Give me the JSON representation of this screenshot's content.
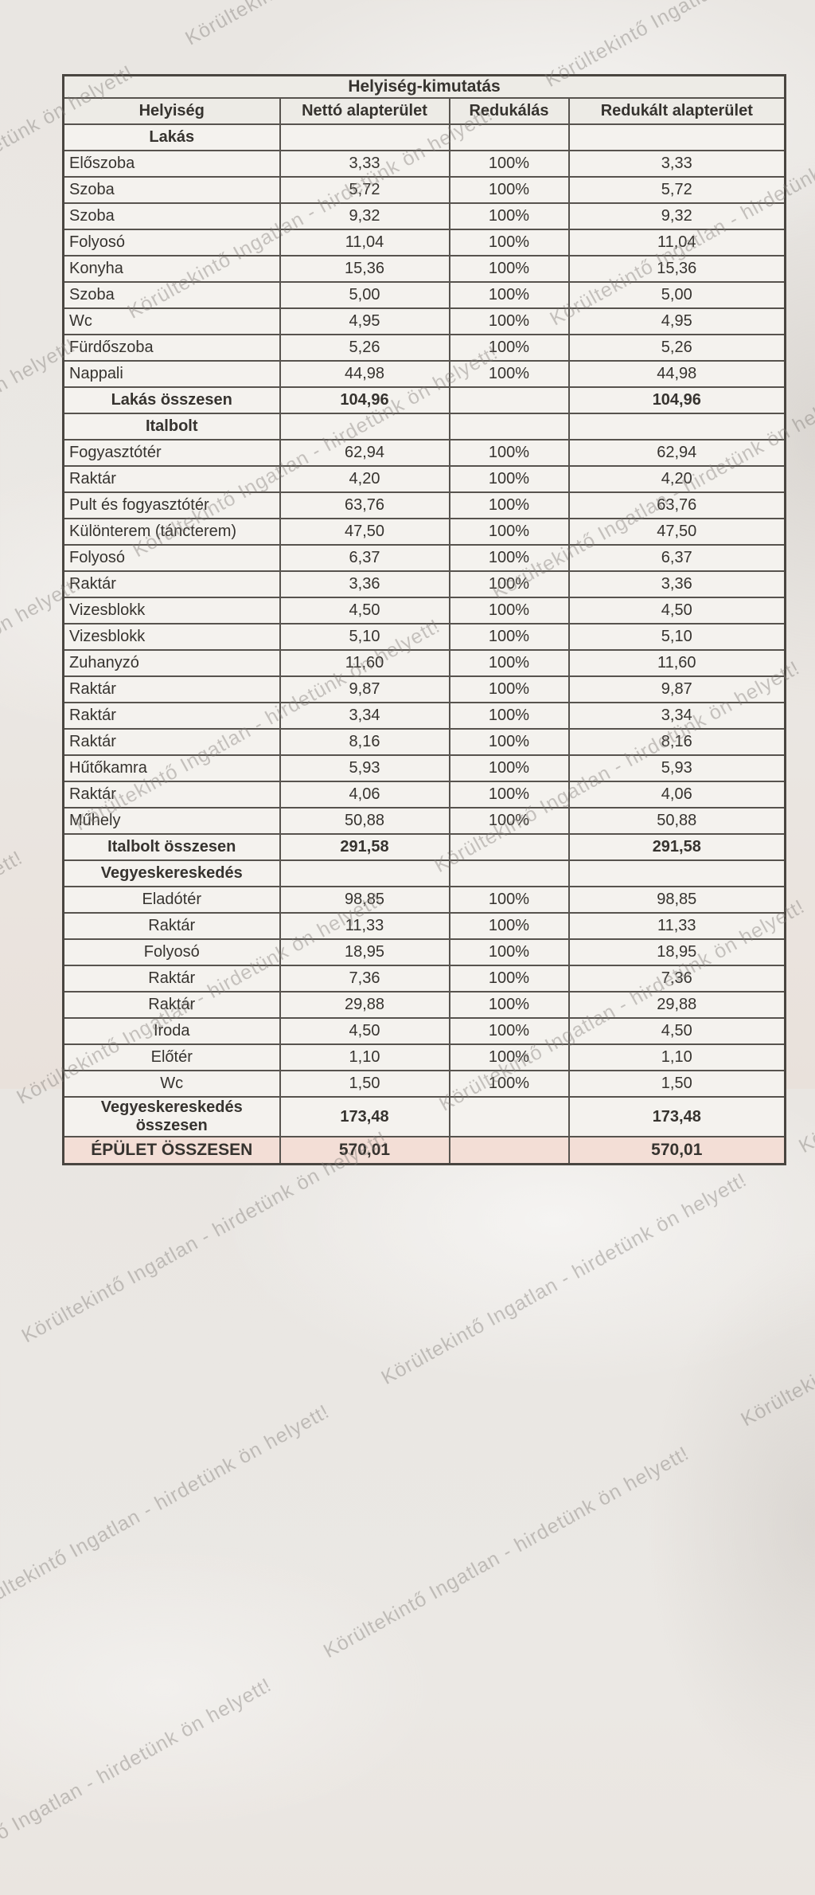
{
  "watermark": {
    "text": "Körültekintő Ingatlan - hirdetünk ön helyett!"
  },
  "colors": {
    "paper": "#eae7e3",
    "grand_total_row": "#f3ded6",
    "grid_line": "#57534e",
    "text": "#36332f"
  },
  "table": {
    "title": "Helyiség-kimutatás",
    "columns": [
      "Helyiség",
      "Nettó alapterület",
      "Redukálás",
      "Redukált alapterület"
    ],
    "sections": [
      {
        "name": "Lakás",
        "row_align": "left",
        "rows": [
          {
            "name": "Előszoba",
            "net": "3,33",
            "reduction": "100%",
            "reduced": "3,33"
          },
          {
            "name": "Szoba",
            "net": "5,72",
            "reduction": "100%",
            "reduced": "5,72"
          },
          {
            "name": "Szoba",
            "net": "9,32",
            "reduction": "100%",
            "reduced": "9,32"
          },
          {
            "name": "Folyosó",
            "net": "11,04",
            "reduction": "100%",
            "reduced": "11,04"
          },
          {
            "name": "Konyha",
            "net": "15,36",
            "reduction": "100%",
            "reduced": "15,36"
          },
          {
            "name": "Szoba",
            "net": "5,00",
            "reduction": "100%",
            "reduced": "5,00"
          },
          {
            "name": "Wc",
            "net": "4,95",
            "reduction": "100%",
            "reduced": "4,95"
          },
          {
            "name": "Fürdőszoba",
            "net": "5,26",
            "reduction": "100%",
            "reduced": "5,26"
          },
          {
            "name": "Nappali",
            "net": "44,98",
            "reduction": "100%",
            "reduced": "44,98"
          }
        ],
        "total": {
          "label": "Lakás összesen",
          "net": "104,96",
          "reduction": "",
          "reduced": "104,96"
        }
      },
      {
        "name": "Italbolt",
        "row_align": "left",
        "rows": [
          {
            "name": "Fogyasztótér",
            "net": "62,94",
            "reduction": "100%",
            "reduced": "62,94"
          },
          {
            "name": "Raktár",
            "net": "4,20",
            "reduction": "100%",
            "reduced": "4,20"
          },
          {
            "name": "Pult és fogyasztótér",
            "net": "63,76",
            "reduction": "100%",
            "reduced": "63,76"
          },
          {
            "name": "Különterem (táncterem)",
            "net": "47,50",
            "reduction": "100%",
            "reduced": "47,50"
          },
          {
            "name": "Folyosó",
            "net": "6,37",
            "reduction": "100%",
            "reduced": "6,37"
          },
          {
            "name": "Raktár",
            "net": "3,36",
            "reduction": "100%",
            "reduced": "3,36"
          },
          {
            "name": "Vizesblokk",
            "net": "4,50",
            "reduction": "100%",
            "reduced": "4,50"
          },
          {
            "name": "Vizesblokk",
            "net": "5,10",
            "reduction": "100%",
            "reduced": "5,10"
          },
          {
            "name": "Zuhanyzó",
            "net": "11,60",
            "reduction": "100%",
            "reduced": "11,60"
          },
          {
            "name": "Raktár",
            "net": "9,87",
            "reduction": "100%",
            "reduced": "9,87"
          },
          {
            "name": "Raktár",
            "net": "3,34",
            "reduction": "100%",
            "reduced": "3,34"
          },
          {
            "name": "Raktár",
            "net": "8,16",
            "reduction": "100%",
            "reduced": "8,16"
          },
          {
            "name": "Hűtőkamra",
            "net": "5,93",
            "reduction": "100%",
            "reduced": "5,93"
          },
          {
            "name": "Raktár",
            "net": "4,06",
            "reduction": "100%",
            "reduced": "4,06"
          },
          {
            "name": "Műhely",
            "net": "50,88",
            "reduction": "100%",
            "reduced": "50,88"
          }
        ],
        "total": {
          "label": "Italbolt összesen",
          "net": "291,58",
          "reduction": "",
          "reduced": "291,58"
        }
      },
      {
        "name": "Vegyeskereskedés",
        "row_align": "center",
        "rows": [
          {
            "name": "Eladótér",
            "net": "98,85",
            "reduction": "100%",
            "reduced": "98,85"
          },
          {
            "name": "Raktár",
            "net": "11,33",
            "reduction": "100%",
            "reduced": "11,33"
          },
          {
            "name": "Folyosó",
            "net": "18,95",
            "reduction": "100%",
            "reduced": "18,95"
          },
          {
            "name": "Raktár",
            "net": "7,36",
            "reduction": "100%",
            "reduced": "7,36"
          },
          {
            "name": "Raktár",
            "net": "29,88",
            "reduction": "100%",
            "reduced": "29,88"
          },
          {
            "name": "Iroda",
            "net": "4,50",
            "reduction": "100%",
            "reduced": "4,50"
          },
          {
            "name": "Előtér",
            "net": "1,10",
            "reduction": "100%",
            "reduced": "1,10"
          },
          {
            "name": "Wc",
            "net": "1,50",
            "reduction": "100%",
            "reduced": "1,50"
          }
        ],
        "total": {
          "label": "Vegyeskereskedés összesen",
          "net": "173,48",
          "reduction": "",
          "reduced": "173,48"
        }
      }
    ],
    "grand_total": {
      "label": "ÉPÜLET ÖSSZESEN",
      "net": "570,01",
      "reduction": "",
      "reduced": "570,01"
    }
  }
}
